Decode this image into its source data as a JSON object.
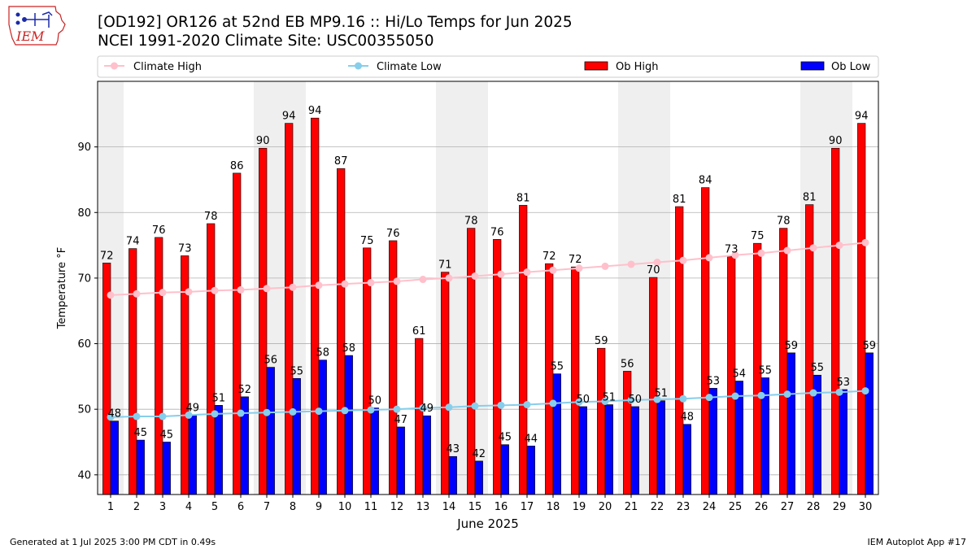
{
  "header": {
    "logo_text": "IEM",
    "title_line1": "[OD192] OR126 at 52nd EB MP9.16  :: Hi/Lo Temps for Jun 2025",
    "title_line2": "NCEI 1991-2020 Climate Site: USC00355050"
  },
  "footer": {
    "generated": "Generated at 1 Jul 2025 3:00 PM CDT in 0.49s",
    "app": "IEM Autoplot App #17"
  },
  "chart_data": {
    "type": "bar",
    "xlabel": "June 2025",
    "ylabel": "Temperature °F",
    "ylim": [
      37,
      100
    ],
    "yticks": [
      40,
      50,
      60,
      70,
      80,
      90
    ],
    "grid": true,
    "legend_position": "top, spanning full width",
    "days": [
      1,
      2,
      3,
      4,
      5,
      6,
      7,
      8,
      9,
      10,
      11,
      12,
      13,
      14,
      15,
      16,
      17,
      18,
      19,
      20,
      21,
      22,
      23,
      24,
      25,
      26,
      27,
      28,
      29,
      30
    ],
    "shaded_days": [
      1,
      7,
      8,
      14,
      15,
      21,
      22,
      28,
      29
    ],
    "series": [
      {
        "name": "Ob High",
        "kind": "bar",
        "color": "#ff0000",
        "values": [
          72.3,
          74.5,
          76.2,
          73.4,
          78.3,
          86.0,
          89.8,
          93.6,
          94.4,
          86.7,
          74.6,
          75.7,
          60.8,
          70.9,
          77.6,
          75.9,
          81.1,
          72.2,
          71.7,
          59.3,
          55.8,
          70.1,
          80.9,
          83.8,
          73.3,
          75.3,
          77.6,
          81.2,
          89.8,
          93.6
        ],
        "labels": [
          "72",
          "74",
          "76",
          "73",
          "78",
          "86",
          "90",
          "94",
          "94",
          "87",
          "75",
          "76",
          "61",
          "71",
          "78",
          "76",
          "81",
          "72",
          "72",
          "59",
          "56",
          "70",
          "81",
          "84",
          "73",
          "75",
          "78",
          "81",
          "90",
          "94"
        ]
      },
      {
        "name": "Ob Low",
        "kind": "bar",
        "color": "#0000ff",
        "values": [
          48.2,
          45.3,
          45.0,
          49.1,
          50.6,
          51.9,
          56.4,
          54.7,
          57.5,
          58.2,
          50.2,
          47.3,
          49.0,
          42.8,
          42.1,
          44.6,
          44.4,
          55.4,
          50.4,
          50.7,
          50.4,
          51.3,
          47.7,
          53.2,
          54.3,
          54.8,
          58.6,
          55.2,
          53.0,
          58.6
        ],
        "labels": [
          "48",
          "45",
          "45",
          "49",
          "51",
          "52",
          "56",
          "55",
          "58",
          "58",
          "50",
          "47",
          "49",
          "43",
          "42",
          "45",
          "44",
          "55",
          "50",
          "51",
          "50",
          "51",
          "48",
          "53",
          "54",
          "55",
          "59",
          "55",
          "53",
          "59"
        ]
      },
      {
        "name": "Climate High",
        "kind": "line",
        "color": "#ffc0cb",
        "values": [
          67.4,
          67.6,
          67.8,
          67.9,
          68.1,
          68.2,
          68.4,
          68.6,
          68.9,
          69.1,
          69.3,
          69.5,
          69.8,
          70.0,
          70.3,
          70.6,
          70.9,
          71.2,
          71.5,
          71.8,
          72.1,
          72.4,
          72.7,
          73.1,
          73.5,
          73.8,
          74.2,
          74.6,
          75.0,
          75.4
        ]
      },
      {
        "name": "Climate Low",
        "kind": "line",
        "color": "#87ceeb",
        "values": [
          48.8,
          48.9,
          48.9,
          49.1,
          49.3,
          49.4,
          49.5,
          49.6,
          49.7,
          49.8,
          49.9,
          50.0,
          50.2,
          50.3,
          50.5,
          50.6,
          50.7,
          50.9,
          51.1,
          51.2,
          51.4,
          51.5,
          51.6,
          51.8,
          52.0,
          52.1,
          52.3,
          52.5,
          52.6,
          52.8
        ]
      }
    ]
  }
}
